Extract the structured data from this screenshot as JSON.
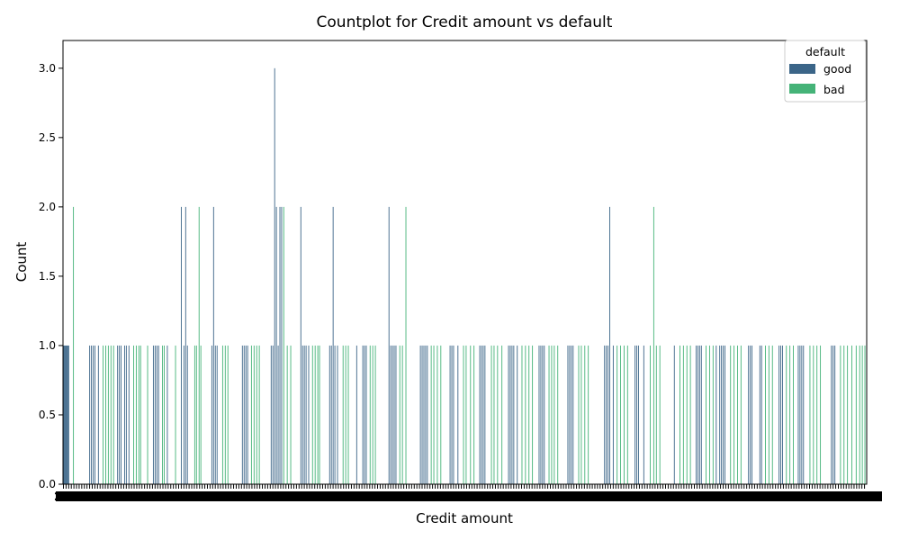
{
  "chart_data": {
    "type": "bar",
    "title": "Countplot for Credit amount vs default",
    "xlabel": "Credit amount",
    "ylabel": "Count",
    "ylim": [
      0,
      3.2
    ],
    "yticks": [
      "0.0",
      "0.5",
      "1.0",
      "1.5",
      "2.0",
      "2.5",
      "3.0"
    ],
    "x_tick_labels_note": "2",
    "legend": {
      "title": "default",
      "placement": "top-right",
      "entries": [
        {
          "name": "good",
          "color": "#3b6588"
        },
        {
          "name": "bad",
          "color": "#45b378"
        }
      ]
    },
    "category_count": 921,
    "series": [
      {
        "name": "good",
        "color": "#3b6588",
        "points": [
          {
            "x": 0,
            "y": 1
          },
          {
            "x": 1,
            "y": 1
          },
          {
            "x": 2,
            "y": 1
          },
          {
            "x": 3,
            "y": 1
          },
          {
            "x": 4,
            "y": 1
          },
          {
            "x": 5,
            "y": 1
          },
          {
            "x": 6,
            "y": 1
          },
          {
            "x": 30,
            "y": 1
          },
          {
            "x": 32,
            "y": 1
          },
          {
            "x": 34,
            "y": 1
          },
          {
            "x": 36,
            "y": 1
          },
          {
            "x": 40,
            "y": 1
          },
          {
            "x": 62,
            "y": 1
          },
          {
            "x": 64,
            "y": 1
          },
          {
            "x": 66,
            "y": 1
          },
          {
            "x": 70,
            "y": 1
          },
          {
            "x": 72,
            "y": 1
          },
          {
            "x": 75,
            "y": 1
          },
          {
            "x": 103,
            "y": 1
          },
          {
            "x": 105,
            "y": 1
          },
          {
            "x": 107,
            "y": 1
          },
          {
            "x": 109,
            "y": 1
          },
          {
            "x": 119,
            "y": 1
          },
          {
            "x": 135,
            "y": 2
          },
          {
            "x": 138,
            "y": 1
          },
          {
            "x": 140,
            "y": 2
          },
          {
            "x": 142,
            "y": 1
          },
          {
            "x": 170,
            "y": 1
          },
          {
            "x": 172,
            "y": 2
          },
          {
            "x": 174,
            "y": 1
          },
          {
            "x": 176,
            "y": 1
          },
          {
            "x": 205,
            "y": 1
          },
          {
            "x": 207,
            "y": 1
          },
          {
            "x": 209,
            "y": 1
          },
          {
            "x": 211,
            "y": 1
          },
          {
            "x": 238,
            "y": 1
          },
          {
            "x": 240,
            "y": 1
          },
          {
            "x": 242,
            "y": 3
          },
          {
            "x": 244,
            "y": 2
          },
          {
            "x": 246,
            "y": 1
          },
          {
            "x": 248,
            "y": 2
          },
          {
            "x": 250,
            "y": 2
          },
          {
            "x": 272,
            "y": 2
          },
          {
            "x": 274,
            "y": 1
          },
          {
            "x": 276,
            "y": 1
          },
          {
            "x": 278,
            "y": 1
          },
          {
            "x": 281,
            "y": 1
          },
          {
            "x": 305,
            "y": 1
          },
          {
            "x": 307,
            "y": 1
          },
          {
            "x": 309,
            "y": 2
          },
          {
            "x": 311,
            "y": 1
          },
          {
            "x": 314,
            "y": 1
          },
          {
            "x": 336,
            "y": 1
          },
          {
            "x": 343,
            "y": 1
          },
          {
            "x": 345,
            "y": 1
          },
          {
            "x": 347,
            "y": 1
          },
          {
            "x": 373,
            "y": 2
          },
          {
            "x": 375,
            "y": 1
          },
          {
            "x": 377,
            "y": 1
          },
          {
            "x": 379,
            "y": 1
          },
          {
            "x": 381,
            "y": 1
          },
          {
            "x": 409,
            "y": 1
          },
          {
            "x": 411,
            "y": 1
          },
          {
            "x": 413,
            "y": 1
          },
          {
            "x": 415,
            "y": 1
          },
          {
            "x": 417,
            "y": 1
          },
          {
            "x": 443,
            "y": 1
          },
          {
            "x": 445,
            "y": 1
          },
          {
            "x": 447,
            "y": 1
          },
          {
            "x": 452,
            "y": 1
          },
          {
            "x": 477,
            "y": 1
          },
          {
            "x": 479,
            "y": 1
          },
          {
            "x": 481,
            "y": 1
          },
          {
            "x": 483,
            "y": 1
          },
          {
            "x": 510,
            "y": 1
          },
          {
            "x": 512,
            "y": 1
          },
          {
            "x": 514,
            "y": 1
          },
          {
            "x": 516,
            "y": 1
          },
          {
            "x": 520,
            "y": 1
          },
          {
            "x": 545,
            "y": 1
          },
          {
            "x": 547,
            "y": 1
          },
          {
            "x": 549,
            "y": 1
          },
          {
            "x": 551,
            "y": 1
          },
          {
            "x": 578,
            "y": 1
          },
          {
            "x": 580,
            "y": 1
          },
          {
            "x": 582,
            "y": 1
          },
          {
            "x": 584,
            "y": 1
          },
          {
            "x": 620,
            "y": 1
          },
          {
            "x": 622,
            "y": 1
          },
          {
            "x": 624,
            "y": 1
          },
          {
            "x": 626,
            "y": 2
          },
          {
            "x": 630,
            "y": 1
          },
          {
            "x": 655,
            "y": 1
          },
          {
            "x": 657,
            "y": 1
          },
          {
            "x": 659,
            "y": 1
          },
          {
            "x": 665,
            "y": 1
          },
          {
            "x": 700,
            "y": 1
          },
          {
            "x": 725,
            "y": 1
          },
          {
            "x": 727,
            "y": 1
          },
          {
            "x": 729,
            "y": 1
          },
          {
            "x": 731,
            "y": 1
          },
          {
            "x": 748,
            "y": 1
          },
          {
            "x": 752,
            "y": 1
          },
          {
            "x": 754,
            "y": 1
          },
          {
            "x": 756,
            "y": 1
          },
          {
            "x": 758,
            "y": 1
          },
          {
            "x": 785,
            "y": 1
          },
          {
            "x": 787,
            "y": 1
          },
          {
            "x": 789,
            "y": 1
          },
          {
            "x": 798,
            "y": 1
          },
          {
            "x": 800,
            "y": 1
          },
          {
            "x": 820,
            "y": 1
          },
          {
            "x": 822,
            "y": 1
          },
          {
            "x": 824,
            "y": 1
          },
          {
            "x": 842,
            "y": 1
          },
          {
            "x": 844,
            "y": 1
          },
          {
            "x": 846,
            "y": 1
          },
          {
            "x": 848,
            "y": 1
          },
          {
            "x": 880,
            "y": 1
          },
          {
            "x": 882,
            "y": 1
          },
          {
            "x": 884,
            "y": 1
          }
        ]
      },
      {
        "name": "bad",
        "color": "#45b378",
        "points": [
          {
            "x": 11,
            "y": 2
          },
          {
            "x": 45,
            "y": 1
          },
          {
            "x": 48,
            "y": 1
          },
          {
            "x": 51,
            "y": 1
          },
          {
            "x": 54,
            "y": 1
          },
          {
            "x": 57,
            "y": 1
          },
          {
            "x": 80,
            "y": 1
          },
          {
            "x": 83,
            "y": 1
          },
          {
            "x": 86,
            "y": 1
          },
          {
            "x": 88,
            "y": 1
          },
          {
            "x": 96,
            "y": 1
          },
          {
            "x": 113,
            "y": 1
          },
          {
            "x": 115,
            "y": 1
          },
          {
            "x": 128,
            "y": 1
          },
          {
            "x": 150,
            "y": 1
          },
          {
            "x": 152,
            "y": 1
          },
          {
            "x": 155,
            "y": 2
          },
          {
            "x": 157,
            "y": 1
          },
          {
            "x": 182,
            "y": 1
          },
          {
            "x": 185,
            "y": 1
          },
          {
            "x": 188,
            "y": 1
          },
          {
            "x": 215,
            "y": 1
          },
          {
            "x": 218,
            "y": 1
          },
          {
            "x": 221,
            "y": 1
          },
          {
            "x": 224,
            "y": 1
          },
          {
            "x": 252,
            "y": 2
          },
          {
            "x": 256,
            "y": 1
          },
          {
            "x": 260,
            "y": 1
          },
          {
            "x": 285,
            "y": 1
          },
          {
            "x": 288,
            "y": 1
          },
          {
            "x": 291,
            "y": 1
          },
          {
            "x": 293,
            "y": 1
          },
          {
            "x": 320,
            "y": 1
          },
          {
            "x": 323,
            "y": 1
          },
          {
            "x": 326,
            "y": 1
          },
          {
            "x": 351,
            "y": 1
          },
          {
            "x": 354,
            "y": 1
          },
          {
            "x": 357,
            "y": 1
          },
          {
            "x": 385,
            "y": 1
          },
          {
            "x": 388,
            "y": 1
          },
          {
            "x": 392,
            "y": 2
          },
          {
            "x": 421,
            "y": 1
          },
          {
            "x": 424,
            "y": 1
          },
          {
            "x": 428,
            "y": 1
          },
          {
            "x": 432,
            "y": 1
          },
          {
            "x": 458,
            "y": 1
          },
          {
            "x": 461,
            "y": 1
          },
          {
            "x": 466,
            "y": 1
          },
          {
            "x": 470,
            "y": 1
          },
          {
            "x": 490,
            "y": 1
          },
          {
            "x": 493,
            "y": 1
          },
          {
            "x": 497,
            "y": 1
          },
          {
            "x": 502,
            "y": 1
          },
          {
            "x": 525,
            "y": 1
          },
          {
            "x": 529,
            "y": 1
          },
          {
            "x": 533,
            "y": 1
          },
          {
            "x": 537,
            "y": 1
          },
          {
            "x": 556,
            "y": 1
          },
          {
            "x": 559,
            "y": 1
          },
          {
            "x": 562,
            "y": 1
          },
          {
            "x": 566,
            "y": 1
          },
          {
            "x": 590,
            "y": 1
          },
          {
            "x": 593,
            "y": 1
          },
          {
            "x": 597,
            "y": 1
          },
          {
            "x": 601,
            "y": 1
          },
          {
            "x": 634,
            "y": 1
          },
          {
            "x": 638,
            "y": 1
          },
          {
            "x": 642,
            "y": 1
          },
          {
            "x": 646,
            "y": 1
          },
          {
            "x": 672,
            "y": 1
          },
          {
            "x": 676,
            "y": 2
          },
          {
            "x": 679,
            "y": 1
          },
          {
            "x": 683,
            "y": 1
          },
          {
            "x": 706,
            "y": 1
          },
          {
            "x": 710,
            "y": 1
          },
          {
            "x": 714,
            "y": 1
          },
          {
            "x": 718,
            "y": 1
          },
          {
            "x": 736,
            "y": 1
          },
          {
            "x": 740,
            "y": 1
          },
          {
            "x": 744,
            "y": 1
          },
          {
            "x": 764,
            "y": 1
          },
          {
            "x": 768,
            "y": 1
          },
          {
            "x": 772,
            "y": 1
          },
          {
            "x": 776,
            "y": 1
          },
          {
            "x": 804,
            "y": 1
          },
          {
            "x": 808,
            "y": 1
          },
          {
            "x": 812,
            "y": 1
          },
          {
            "x": 828,
            "y": 1
          },
          {
            "x": 832,
            "y": 1
          },
          {
            "x": 836,
            "y": 1
          },
          {
            "x": 855,
            "y": 1
          },
          {
            "x": 859,
            "y": 1
          },
          {
            "x": 863,
            "y": 1
          },
          {
            "x": 867,
            "y": 1
          },
          {
            "x": 890,
            "y": 1
          },
          {
            "x": 894,
            "y": 1
          },
          {
            "x": 898,
            "y": 1
          },
          {
            "x": 903,
            "y": 1
          },
          {
            "x": 908,
            "y": 1
          },
          {
            "x": 912,
            "y": 1
          },
          {
            "x": 915,
            "y": 1
          },
          {
            "x": 918,
            "y": 1
          },
          {
            "x": 920,
            "y": 1
          }
        ]
      }
    ]
  }
}
